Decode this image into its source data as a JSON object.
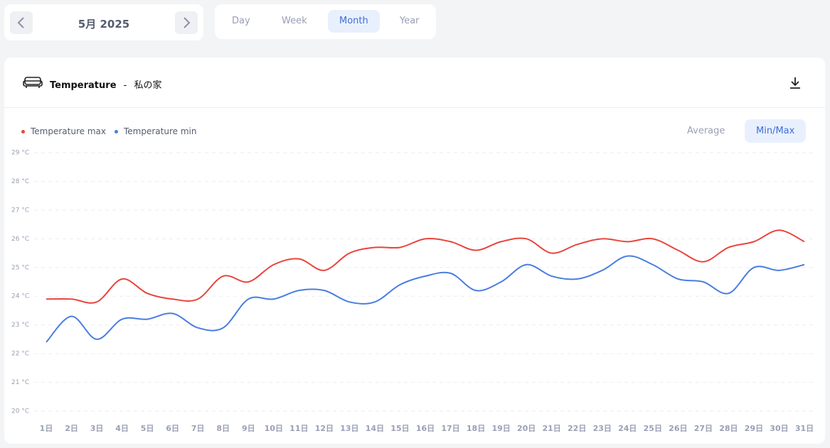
{
  "date_nav": {
    "label": "5月 2025"
  },
  "range_tabs": {
    "items": [
      "Day",
      "Week",
      "Month",
      "Year"
    ],
    "selected": "Month"
  },
  "card": {
    "title": "Temperature",
    "separator": "-",
    "location": "私の家"
  },
  "mode_toggle": {
    "items": [
      "Average",
      "Min/Max"
    ],
    "selected": "Min/Max"
  },
  "chart_data": {
    "type": "line",
    "categories": [
      "1日",
      "2日",
      "3日",
      "4日",
      "5日",
      "6日",
      "7日",
      "8日",
      "9日",
      "10日",
      "11日",
      "12日",
      "13日",
      "14日",
      "15日",
      "16日",
      "17日",
      "18日",
      "19日",
      "20日",
      "21日",
      "22日",
      "23日",
      "24日",
      "25日",
      "26日",
      "27日",
      "28日",
      "29日",
      "30日",
      "31日"
    ],
    "series": [
      {
        "name": "Temperature max",
        "color": "#e8453c",
        "values": [
          23.9,
          23.9,
          23.8,
          24.6,
          24.1,
          23.9,
          23.9,
          24.7,
          24.5,
          25.1,
          25.3,
          24.9,
          25.5,
          25.7,
          25.7,
          26.0,
          25.9,
          25.6,
          25.9,
          26.0,
          25.5,
          25.8,
          26.0,
          25.9,
          26.0,
          25.6,
          25.2,
          25.7,
          25.9,
          26.3,
          25.9
        ]
      },
      {
        "name": "Temperature min",
        "color": "#4a7de0",
        "values": [
          22.4,
          23.3,
          22.5,
          23.2,
          23.2,
          23.4,
          22.9,
          22.9,
          23.9,
          23.9,
          24.2,
          24.2,
          23.8,
          23.8,
          24.4,
          24.7,
          24.8,
          24.2,
          24.5,
          25.1,
          24.7,
          24.6,
          24.9,
          25.4,
          25.1,
          24.6,
          24.5,
          24.1,
          25.0,
          24.9,
          25.1
        ]
      }
    ],
    "ylim": [
      20,
      29
    ],
    "yticks": [
      {
        "value": 20,
        "label": "20 °C"
      },
      {
        "value": 21,
        "label": "21 °C"
      },
      {
        "value": 22,
        "label": "22 °C"
      },
      {
        "value": 23,
        "label": "23 °C"
      },
      {
        "value": 24,
        "label": "24 °C"
      },
      {
        "value": 25,
        "label": "25 °C"
      },
      {
        "value": 26,
        "label": "26 °C"
      },
      {
        "value": 27,
        "label": "27 °C"
      },
      {
        "value": 28,
        "label": "28 °C"
      },
      {
        "value": 29,
        "label": "29 °C"
      }
    ],
    "grid": true
  }
}
